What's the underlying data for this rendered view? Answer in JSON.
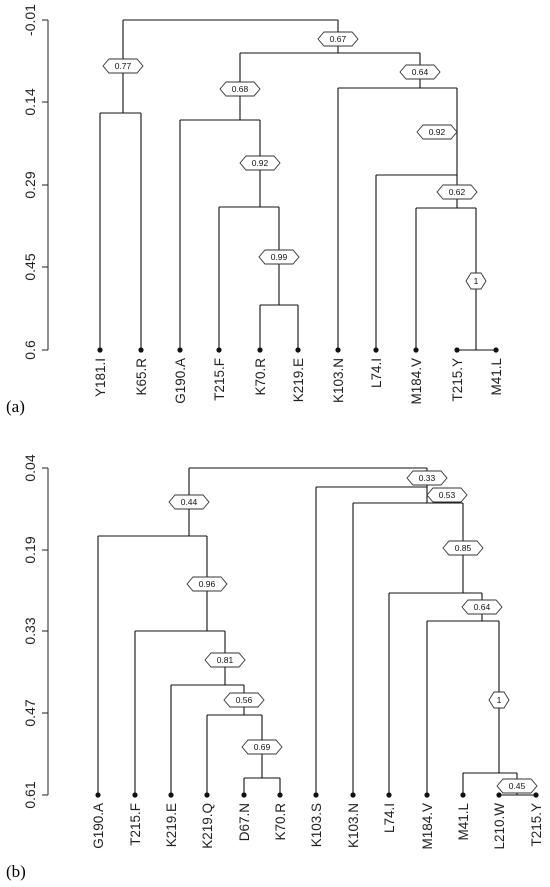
{
  "panels": [
    {
      "label": "(a)",
      "axis_ticks": [
        "-0.01",
        "0.14",
        "0.29",
        "0.45",
        "0.6"
      ],
      "leaves": [
        "Y181.I",
        "K65.R",
        "G190.A",
        "T215.F",
        "K70.R",
        "K219.E",
        "K103.N",
        "L74.I",
        "M184.V",
        "T215.Y",
        "M41.L"
      ],
      "node_values": [
        "0.67",
        "0.77",
        "0.68",
        "0.64",
        "0.92",
        "0.92",
        "0.62",
        "0.99",
        "1"
      ]
    },
    {
      "label": "(b)",
      "axis_ticks": [
        "0.04",
        "0.19",
        "0.33",
        "0.47",
        "0.61"
      ],
      "leaves": [
        "G190.A",
        "T215.F",
        "K219.E",
        "K219.Q",
        "D67.N",
        "K70.R",
        "K103.S",
        "K103.N",
        "L74.I",
        "M184.V",
        "M41.L",
        "L210.W",
        "T215.Y"
      ],
      "node_values": [
        "0.33",
        "0.44",
        "0.53",
        "0.96",
        "0.85",
        "0.81",
        "0.64",
        "0.56",
        "1",
        "0.69",
        "0.45"
      ]
    }
  ]
}
